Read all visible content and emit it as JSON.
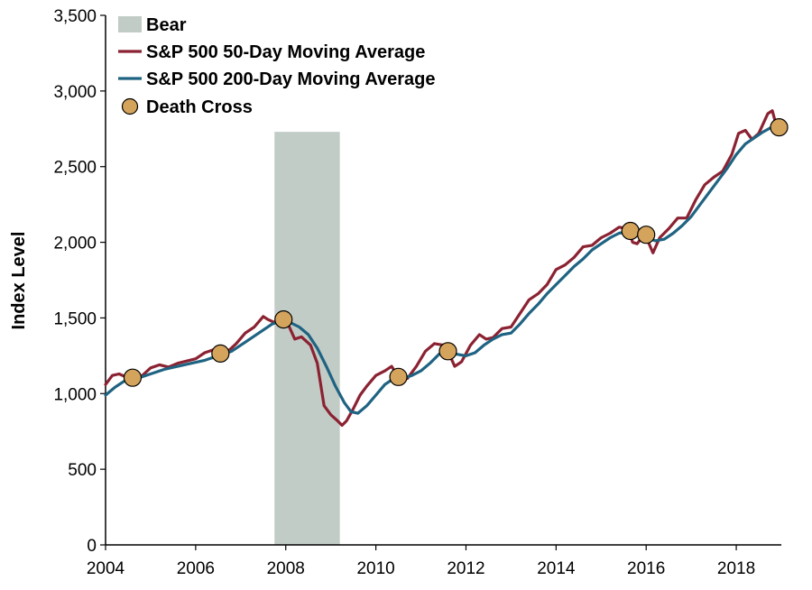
{
  "chart_data": {
    "type": "line",
    "title": "",
    "xlabel": "",
    "ylabel": "Index Level",
    "xlim": [
      2004,
      2019
    ],
    "ylim": [
      0,
      3500
    ],
    "x_ticks": [
      2004,
      2006,
      2008,
      2010,
      2012,
      2014,
      2016,
      2018
    ],
    "x_tick_labels": [
      "2004",
      "2006",
      "2008",
      "2010",
      "2012",
      "2014",
      "2016",
      "2018"
    ],
    "y_ticks": [
      0,
      500,
      1000,
      1500,
      2000,
      2500,
      3000,
      3500
    ],
    "y_tick_labels": [
      "0",
      "500",
      "1,000",
      "1,500",
      "2,000",
      "2,500",
      "3,000",
      "3,500"
    ],
    "grid": false,
    "legend_position": "top-left",
    "legend": [
      "Bear",
      "S&P 500 50-Day Moving Average",
      "S&P 500 200-Day Moving Average",
      "Death Cross"
    ],
    "bear_period": {
      "name": "Bear",
      "start": 2007.75,
      "end": 2009.2,
      "top": 2730,
      "color": "#c2ccc6"
    },
    "series": [
      {
        "name": "S&P 500 50-Day Moving Average",
        "color": "#8b2232",
        "points": [
          [
            2004.0,
            1060
          ],
          [
            2004.15,
            1120
          ],
          [
            2004.3,
            1130
          ],
          [
            2004.45,
            1110
          ],
          [
            2004.6,
            1105
          ],
          [
            2004.8,
            1115
          ],
          [
            2005.0,
            1170
          ],
          [
            2005.2,
            1190
          ],
          [
            2005.4,
            1175
          ],
          [
            2005.6,
            1200
          ],
          [
            2005.8,
            1215
          ],
          [
            2006.0,
            1230
          ],
          [
            2006.2,
            1270
          ],
          [
            2006.4,
            1290
          ],
          [
            2006.55,
            1255
          ],
          [
            2006.7,
            1275
          ],
          [
            2006.9,
            1330
          ],
          [
            2007.1,
            1400
          ],
          [
            2007.3,
            1440
          ],
          [
            2007.5,
            1510
          ],
          [
            2007.6,
            1490
          ],
          [
            2007.75,
            1470
          ],
          [
            2007.9,
            1500
          ],
          [
            2008.05,
            1460
          ],
          [
            2008.2,
            1360
          ],
          [
            2008.35,
            1375
          ],
          [
            2008.55,
            1320
          ],
          [
            2008.7,
            1200
          ],
          [
            2008.85,
            920
          ],
          [
            2009.0,
            860
          ],
          [
            2009.15,
            820
          ],
          [
            2009.25,
            790
          ],
          [
            2009.35,
            820
          ],
          [
            2009.5,
            900
          ],
          [
            2009.65,
            990
          ],
          [
            2009.8,
            1050
          ],
          [
            2010.0,
            1120
          ],
          [
            2010.2,
            1150
          ],
          [
            2010.35,
            1180
          ],
          [
            2010.5,
            1110
          ],
          [
            2010.7,
            1100
          ],
          [
            2010.9,
            1180
          ],
          [
            2011.1,
            1280
          ],
          [
            2011.3,
            1330
          ],
          [
            2011.5,
            1320
          ],
          [
            2011.6,
            1280
          ],
          [
            2011.75,
            1180
          ],
          [
            2011.9,
            1210
          ],
          [
            2012.1,
            1320
          ],
          [
            2012.3,
            1390
          ],
          [
            2012.45,
            1360
          ],
          [
            2012.6,
            1370
          ],
          [
            2012.8,
            1430
          ],
          [
            2013.0,
            1440
          ],
          [
            2013.2,
            1530
          ],
          [
            2013.4,
            1620
          ],
          [
            2013.6,
            1660
          ],
          [
            2013.8,
            1720
          ],
          [
            2014.0,
            1820
          ],
          [
            2014.2,
            1850
          ],
          [
            2014.4,
            1900
          ],
          [
            2014.6,
            1970
          ],
          [
            2014.8,
            1980
          ],
          [
            2015.0,
            2030
          ],
          [
            2015.2,
            2060
          ],
          [
            2015.4,
            2100
          ],
          [
            2015.6,
            2090
          ],
          [
            2015.7,
            2000
          ],
          [
            2015.8,
            1990
          ],
          [
            2015.95,
            2050
          ],
          [
            2016.05,
            2000
          ],
          [
            2016.15,
            1930
          ],
          [
            2016.3,
            2030
          ],
          [
            2016.5,
            2090
          ],
          [
            2016.7,
            2160
          ],
          [
            2016.9,
            2160
          ],
          [
            2017.1,
            2280
          ],
          [
            2017.3,
            2380
          ],
          [
            2017.5,
            2430
          ],
          [
            2017.7,
            2470
          ],
          [
            2017.9,
            2580
          ],
          [
            2018.05,
            2720
          ],
          [
            2018.2,
            2740
          ],
          [
            2018.35,
            2680
          ],
          [
            2018.5,
            2720
          ],
          [
            2018.7,
            2850
          ],
          [
            2018.8,
            2870
          ],
          [
            2018.9,
            2760
          ]
        ]
      },
      {
        "name": "S&P 500 200-Day Moving Average",
        "color": "#1f6382",
        "points": [
          [
            2004.0,
            990
          ],
          [
            2004.2,
            1040
          ],
          [
            2004.4,
            1080
          ],
          [
            2004.6,
            1100
          ],
          [
            2004.8,
            1110
          ],
          [
            2005.0,
            1130
          ],
          [
            2005.3,
            1160
          ],
          [
            2005.6,
            1180
          ],
          [
            2005.9,
            1200
          ],
          [
            2006.2,
            1220
          ],
          [
            2006.5,
            1250
          ],
          [
            2006.8,
            1280
          ],
          [
            2007.1,
            1340
          ],
          [
            2007.4,
            1400
          ],
          [
            2007.7,
            1460
          ],
          [
            2007.9,
            1480
          ],
          [
            2008.1,
            1470
          ],
          [
            2008.3,
            1440
          ],
          [
            2008.5,
            1390
          ],
          [
            2008.7,
            1300
          ],
          [
            2008.9,
            1180
          ],
          [
            2009.1,
            1050
          ],
          [
            2009.3,
            940
          ],
          [
            2009.45,
            880
          ],
          [
            2009.6,
            870
          ],
          [
            2009.8,
            920
          ],
          [
            2010.0,
            990
          ],
          [
            2010.2,
            1060
          ],
          [
            2010.4,
            1100
          ],
          [
            2010.6,
            1100
          ],
          [
            2010.8,
            1120
          ],
          [
            2011.0,
            1150
          ],
          [
            2011.2,
            1200
          ],
          [
            2011.4,
            1260
          ],
          [
            2011.6,
            1280
          ],
          [
            2011.8,
            1260
          ],
          [
            2012.0,
            1250
          ],
          [
            2012.2,
            1270
          ],
          [
            2012.4,
            1320
          ],
          [
            2012.6,
            1360
          ],
          [
            2012.8,
            1390
          ],
          [
            2013.0,
            1400
          ],
          [
            2013.2,
            1460
          ],
          [
            2013.4,
            1530
          ],
          [
            2013.6,
            1590
          ],
          [
            2013.8,
            1660
          ],
          [
            2014.0,
            1720
          ],
          [
            2014.2,
            1780
          ],
          [
            2014.4,
            1840
          ],
          [
            2014.6,
            1890
          ],
          [
            2014.8,
            1950
          ],
          [
            2015.0,
            1990
          ],
          [
            2015.2,
            2030
          ],
          [
            2015.4,
            2060
          ],
          [
            2015.6,
            2070
          ],
          [
            2015.8,
            2060
          ],
          [
            2016.0,
            2040
          ],
          [
            2016.2,
            2010
          ],
          [
            2016.4,
            2020
          ],
          [
            2016.6,
            2060
          ],
          [
            2016.8,
            2110
          ],
          [
            2017.0,
            2170
          ],
          [
            2017.2,
            2250
          ],
          [
            2017.4,
            2330
          ],
          [
            2017.6,
            2410
          ],
          [
            2017.8,
            2490
          ],
          [
            2018.0,
            2580
          ],
          [
            2018.2,
            2650
          ],
          [
            2018.4,
            2690
          ],
          [
            2018.6,
            2730
          ],
          [
            2018.9,
            2780
          ]
        ]
      }
    ],
    "death_crosses": {
      "name": "Death Cross",
      "color": "#d4a45c",
      "points": [
        [
          2004.6,
          1105
        ],
        [
          2006.55,
          1265
        ],
        [
          2007.95,
          1490
        ],
        [
          2010.5,
          1110
        ],
        [
          2011.6,
          1280
        ],
        [
          2015.65,
          2075
        ],
        [
          2016.0,
          2050
        ],
        [
          2018.95,
          2760
        ]
      ]
    }
  }
}
